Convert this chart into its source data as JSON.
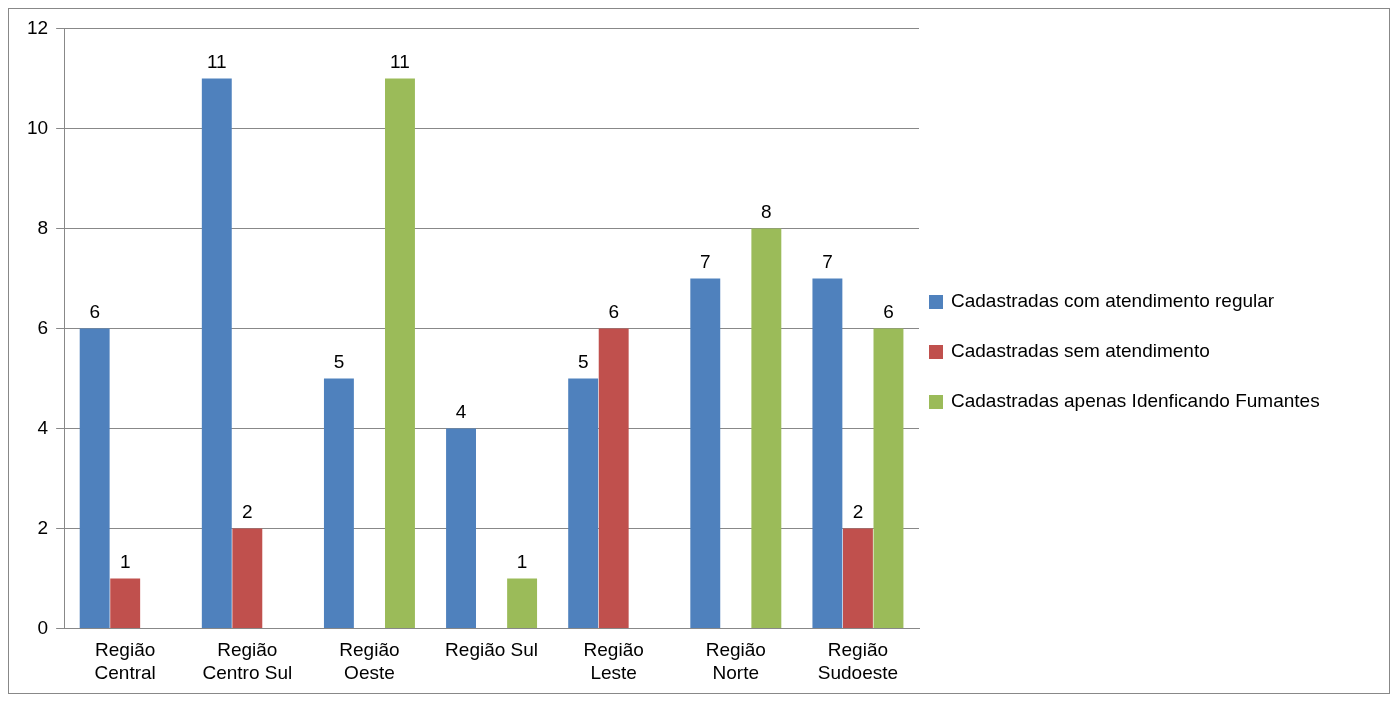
{
  "chart_data": {
    "type": "bar",
    "categories": [
      "Região Central",
      "Região Centro Sul",
      "Região Oeste",
      "Região Sul",
      "Região Leste",
      "Região Norte",
      "Região Sudoeste"
    ],
    "series": [
      {
        "name": "Cadastradas com atendimento regular",
        "color": "#4f81bd",
        "values": [
          6,
          11,
          5,
          4,
          5,
          7,
          7
        ]
      },
      {
        "name": "Cadastradas sem atendimento",
        "color": "#c0504d",
        "values": [
          1,
          2,
          null,
          null,
          6,
          null,
          2
        ]
      },
      {
        "name": "Cadastradas apenas Idenficando Fumantes",
        "color": "#9bbb59",
        "values": [
          null,
          null,
          11,
          1,
          null,
          8,
          6
        ]
      }
    ],
    "ylim": [
      0,
      12
    ],
    "yticks": [
      0,
      2,
      4,
      6,
      8,
      10,
      12
    ],
    "grid": "y",
    "legend": "right",
    "data_labels": true
  }
}
